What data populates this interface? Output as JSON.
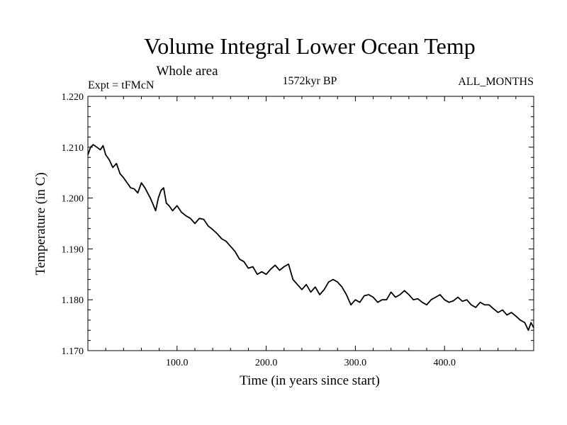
{
  "chart_data": {
    "type": "line",
    "title": "Volume Integral Lower Ocean Temp",
    "subtitle": "Whole area",
    "experiment": "Expt = tFMcN",
    "period": "1572kyr BP",
    "months": "ALL_MONTHS",
    "xlabel": "Time (in years since start)",
    "ylabel": "Temperature (in C)",
    "xlim": [
      0,
      500
    ],
    "ylim": [
      1.17,
      1.22
    ],
    "xticks": [
      100,
      200,
      300,
      400
    ],
    "xtick_labels": [
      "100.0",
      "200.0",
      "300.0",
      "400.0"
    ],
    "yticks": [
      1.17,
      1.18,
      1.19,
      1.2,
      1.21,
      1.22
    ],
    "ytick_labels": [
      "1.170",
      "1.180",
      "1.190",
      "1.200",
      "1.210",
      "1.220"
    ],
    "grid": false,
    "series": [
      {
        "name": "Temperature",
        "color": "#000000",
        "x": [
          0,
          3,
          6,
          10,
          14,
          17,
          20,
          24,
          28,
          32,
          36,
          40,
          44,
          48,
          52,
          56,
          60,
          64,
          67,
          70,
          73,
          76,
          79,
          82,
          85,
          88,
          91,
          95,
          100,
          105,
          110,
          115,
          120,
          125,
          130,
          135,
          140,
          145,
          150,
          155,
          160,
          165,
          170,
          175,
          180,
          185,
          190,
          195,
          200,
          205,
          210,
          215,
          220,
          225,
          230,
          235,
          240,
          245,
          250,
          255,
          260,
          265,
          270,
          275,
          280,
          285,
          290,
          295,
          300,
          305,
          310,
          315,
          320,
          325,
          330,
          335,
          340,
          345,
          350,
          355,
          360,
          365,
          370,
          375,
          380,
          385,
          390,
          395,
          400,
          405,
          410,
          415,
          420,
          425,
          430,
          435,
          440,
          445,
          450,
          455,
          460,
          465,
          470,
          475,
          480,
          485,
          490,
          494,
          497,
          500
        ],
        "values": [
          1.2085,
          1.21,
          1.2105,
          1.21,
          1.2095,
          1.2103,
          1.2085,
          1.2075,
          1.206,
          1.2068,
          1.2048,
          1.204,
          1.203,
          1.202,
          1.2018,
          1.201,
          1.203,
          1.202,
          1.201,
          1.2,
          1.1988,
          1.1975,
          1.2,
          1.2015,
          1.202,
          1.199,
          1.1985,
          1.1975,
          1.1985,
          1.1972,
          1.1965,
          1.196,
          1.195,
          1.196,
          1.1958,
          1.1945,
          1.1938,
          1.193,
          1.192,
          1.1915,
          1.1905,
          1.1895,
          1.188,
          1.1875,
          1.1862,
          1.1865,
          1.185,
          1.1855,
          1.185,
          1.186,
          1.1868,
          1.1858,
          1.1865,
          1.187,
          1.184,
          1.183,
          1.182,
          1.183,
          1.1815,
          1.1825,
          1.181,
          1.182,
          1.1835,
          1.184,
          1.1835,
          1.1825,
          1.181,
          1.179,
          1.18,
          1.1795,
          1.1808,
          1.181,
          1.1805,
          1.1795,
          1.18,
          1.18,
          1.1815,
          1.1805,
          1.181,
          1.1818,
          1.181,
          1.18,
          1.1802,
          1.1795,
          1.179,
          1.18,
          1.1805,
          1.181,
          1.18,
          1.1795,
          1.1798,
          1.1805,
          1.1797,
          1.18,
          1.179,
          1.1785,
          1.1795,
          1.179,
          1.179,
          1.1782,
          1.1775,
          1.178,
          1.177,
          1.1775,
          1.1768,
          1.176,
          1.1755,
          1.174,
          1.1755,
          1.1745
        ]
      }
    ]
  }
}
